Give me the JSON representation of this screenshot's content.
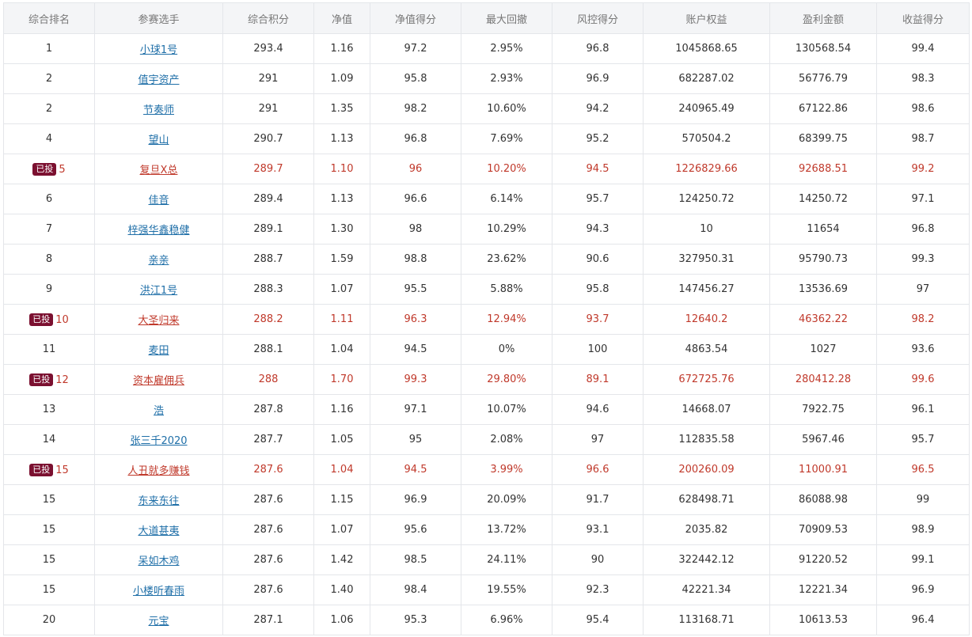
{
  "columns": [
    "综合排名",
    "参赛选手",
    "综合积分",
    "净值",
    "净值得分",
    "最大回撤",
    "风控得分",
    "账户权益",
    "盈利金额",
    "收益得分"
  ],
  "badge_text": "已投",
  "rows": [
    {
      "rank": "1",
      "name": "小球1号",
      "score": "293.4",
      "nav": "1.16",
      "nav_score": "97.2",
      "drawdown": "2.95%",
      "risk": "96.8",
      "equity": "1045868.65",
      "profit": "130568.54",
      "return_score": "99.4",
      "invested": false
    },
    {
      "rank": "2",
      "name": "值宇资产",
      "score": "291",
      "nav": "1.09",
      "nav_score": "95.8",
      "drawdown": "2.93%",
      "risk": "96.9",
      "equity": "682287.02",
      "profit": "56776.79",
      "return_score": "98.3",
      "invested": false
    },
    {
      "rank": "2",
      "name": "节奏师",
      "score": "291",
      "nav": "1.35",
      "nav_score": "98.2",
      "drawdown": "10.60%",
      "risk": "94.2",
      "equity": "240965.49",
      "profit": "67122.86",
      "return_score": "98.6",
      "invested": false
    },
    {
      "rank": "4",
      "name": "望山",
      "score": "290.7",
      "nav": "1.13",
      "nav_score": "96.8",
      "drawdown": "7.69%",
      "risk": "95.2",
      "equity": "570504.2",
      "profit": "68399.75",
      "return_score": "98.7",
      "invested": false
    },
    {
      "rank": "5",
      "name": "复旦X总",
      "score": "289.7",
      "nav": "1.10",
      "nav_score": "96",
      "drawdown": "10.20%",
      "risk": "94.5",
      "equity": "1226829.66",
      "profit": "92688.51",
      "return_score": "99.2",
      "invested": true
    },
    {
      "rank": "6",
      "name": "佳音",
      "score": "289.4",
      "nav": "1.13",
      "nav_score": "96.6",
      "drawdown": "6.14%",
      "risk": "95.7",
      "equity": "124250.72",
      "profit": "14250.72",
      "return_score": "97.1",
      "invested": false
    },
    {
      "rank": "7",
      "name": "梓强华鑫稳健",
      "score": "289.1",
      "nav": "1.30",
      "nav_score": "98",
      "drawdown": "10.29%",
      "risk": "94.3",
      "equity": "10",
      "profit": "11654",
      "return_score": "96.8",
      "invested": false
    },
    {
      "rank": "8",
      "name": "亲亲",
      "score": "288.7",
      "nav": "1.59",
      "nav_score": "98.8",
      "drawdown": "23.62%",
      "risk": "90.6",
      "equity": "327950.31",
      "profit": "95790.73",
      "return_score": "99.3",
      "invested": false
    },
    {
      "rank": "9",
      "name": "洪江1号",
      "score": "288.3",
      "nav": "1.07",
      "nav_score": "95.5",
      "drawdown": "5.88%",
      "risk": "95.8",
      "equity": "147456.27",
      "profit": "13536.69",
      "return_score": "97",
      "invested": false
    },
    {
      "rank": "10",
      "name": "大圣归来",
      "score": "288.2",
      "nav": "1.11",
      "nav_score": "96.3",
      "drawdown": "12.94%",
      "risk": "93.7",
      "equity": "12640.2",
      "profit": "46362.22",
      "return_score": "98.2",
      "invested": true
    },
    {
      "rank": "11",
      "name": "麦田",
      "score": "288.1",
      "nav": "1.04",
      "nav_score": "94.5",
      "drawdown": "0%",
      "risk": "100",
      "equity": "4863.54",
      "profit": "1027",
      "return_score": "93.6",
      "invested": false
    },
    {
      "rank": "12",
      "name": "资本雇佣兵",
      "score": "288",
      "nav": "1.70",
      "nav_score": "99.3",
      "drawdown": "29.80%",
      "risk": "89.1",
      "equity": "672725.76",
      "profit": "280412.28",
      "return_score": "99.6",
      "invested": true
    },
    {
      "rank": "13",
      "name": "浩",
      "score": "287.8",
      "nav": "1.16",
      "nav_score": "97.1",
      "drawdown": "10.07%",
      "risk": "94.6",
      "equity": "14668.07",
      "profit": "7922.75",
      "return_score": "96.1",
      "invested": false
    },
    {
      "rank": "14",
      "name": "张三千2020",
      "score": "287.7",
      "nav": "1.05",
      "nav_score": "95",
      "drawdown": "2.08%",
      "risk": "97",
      "equity": "112835.58",
      "profit": "5967.46",
      "return_score": "95.7",
      "invested": false
    },
    {
      "rank": "15",
      "name": "人丑就多赚钱",
      "score": "287.6",
      "nav": "1.04",
      "nav_score": "94.5",
      "drawdown": "3.99%",
      "risk": "96.6",
      "equity": "200260.09",
      "profit": "11000.91",
      "return_score": "96.5",
      "invested": true
    },
    {
      "rank": "15",
      "name": "东来东往",
      "score": "287.6",
      "nav": "1.15",
      "nav_score": "96.9",
      "drawdown": "20.09%",
      "risk": "91.7",
      "equity": "628498.71",
      "profit": "86088.98",
      "return_score": "99",
      "invested": false
    },
    {
      "rank": "15",
      "name": "大道甚夷",
      "score": "287.6",
      "nav": "1.07",
      "nav_score": "95.6",
      "drawdown": "13.72%",
      "risk": "93.1",
      "equity": "2035.82",
      "profit": "70909.53",
      "return_score": "98.9",
      "invested": false
    },
    {
      "rank": "15",
      "name": "呆如木鸡",
      "score": "287.6",
      "nav": "1.42",
      "nav_score": "98.5",
      "drawdown": "24.11%",
      "risk": "90",
      "equity": "322442.12",
      "profit": "91220.52",
      "return_score": "99.1",
      "invested": false
    },
    {
      "rank": "15",
      "name": "小楼听春雨",
      "score": "287.6",
      "nav": "1.40",
      "nav_score": "98.4",
      "drawdown": "19.55%",
      "risk": "92.3",
      "equity": "42221.34",
      "profit": "12221.34",
      "return_score": "96.9",
      "invested": false
    },
    {
      "rank": "20",
      "name": "元宝",
      "score": "287.1",
      "nav": "1.06",
      "nav_score": "95.3",
      "drawdown": "6.96%",
      "risk": "95.4",
      "equity": "113168.71",
      "profit": "10613.53",
      "return_score": "96.4",
      "invested": false
    }
  ],
  "colors": {
    "highlight_text": "#c0392b",
    "link": "#1f6fa8",
    "badge_bg": "#7b1030",
    "header_bg": "#f4f5f7",
    "border": "#e4e6ea"
  }
}
